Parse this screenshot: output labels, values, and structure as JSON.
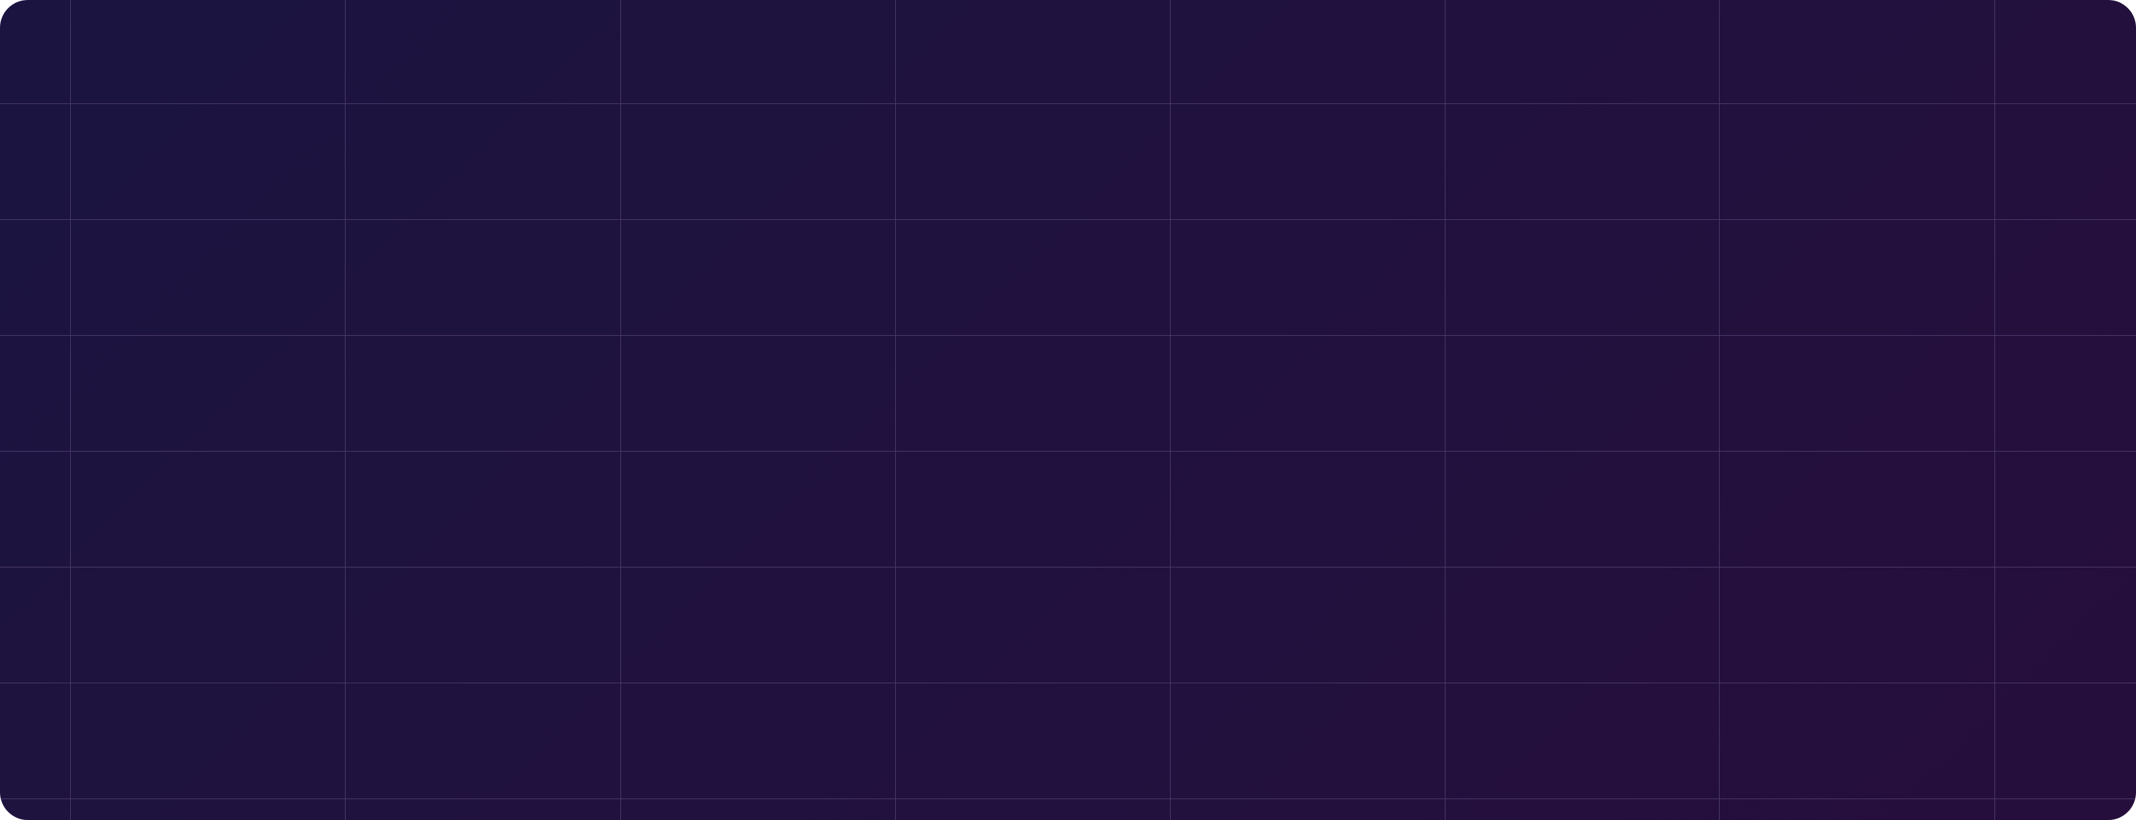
{
  "panel": {
    "colors": {
      "background_start": "#1b1440",
      "background_end": "#260e3c",
      "grid_line": "#4a3a6a"
    }
  }
}
